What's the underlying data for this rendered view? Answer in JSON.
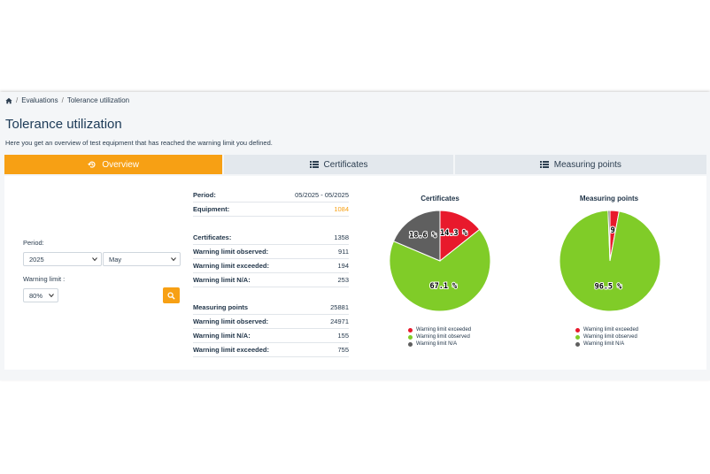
{
  "breadcrumb": {
    "items": [
      "Evaluations",
      "Tolerance utilization"
    ]
  },
  "page": {
    "title": "Tolerance utilization",
    "subtitle": "Here you get an overview of test equipment that has reached the warning limit you defined."
  },
  "tabs": [
    {
      "label": "Overview",
      "icon": "history-icon",
      "active": true
    },
    {
      "label": "Certificates",
      "icon": "list-icon",
      "active": false
    },
    {
      "label": "Measuring points",
      "icon": "list-icon",
      "active": false
    }
  ],
  "filters": {
    "period_label": "Period:",
    "year": "2025",
    "month": "May",
    "warning_limit_label": "Warning limit :",
    "warning_limit": "80%"
  },
  "summary": [
    {
      "key": "Period:",
      "value": "05/2025 - 05/2025"
    },
    {
      "key": "Equipment:",
      "value": "1084"
    }
  ],
  "certificates_stats": [
    {
      "key": "Certificates:",
      "value": "1358"
    },
    {
      "key": "Warning limit observed:",
      "value": "911"
    },
    {
      "key": "Warning limit exceeded:",
      "value": "194"
    },
    {
      "key": "Warning limit N/A:",
      "value": "253"
    }
  ],
  "measuring_stats": [
    {
      "key": "Measuring points",
      "value": "25881"
    },
    {
      "key": "Warning limit observed:",
      "value": "24971"
    },
    {
      "key": "Warning limit N/A:",
      "value": "155"
    },
    {
      "key": "Warning limit exceeded:",
      "value": "755"
    }
  ],
  "colors": {
    "accent": "#f7a014",
    "exceeded": "#e8192c",
    "observed": "#80cc28",
    "na": "#5f5f5f"
  },
  "chart_data": [
    {
      "type": "pie",
      "title": "Certificates",
      "categories": [
        "Warning limit exceeded",
        "Warning limit observed",
        "Warning limit N/A"
      ],
      "values": [
        14.3,
        67.1,
        18.6
      ],
      "labels": [
        "14.3 %",
        "67.1 %",
        "18.6 %"
      ],
      "legend_position": "bottom"
    },
    {
      "type": "pie",
      "title": "Measuring points",
      "categories": [
        "Warning limit exceeded",
        "Warning limit observed",
        "Warning limit N/A"
      ],
      "values": [
        2.9,
        96.5,
        0.6
      ],
      "labels": [
        "2.9 %",
        "96.5 %",
        ""
      ],
      "legend_position": "bottom"
    }
  ]
}
